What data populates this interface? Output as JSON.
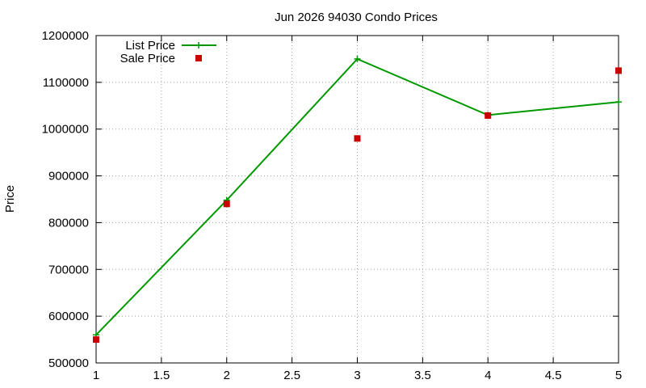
{
  "chart_data": {
    "type": "line",
    "title": "Jun 2026 94030 Condo Prices",
    "xlabel": "",
    "ylabel": "Price",
    "xlim": [
      1,
      5
    ],
    "ylim": [
      500000,
      1200000
    ],
    "xticks": [
      "1",
      "1.5",
      "2",
      "2.5",
      "3",
      "3.5",
      "4",
      "4.5",
      "5"
    ],
    "yticks": [
      "500000",
      "600000",
      "700000",
      "800000",
      "900000",
      "1000000",
      "1100000",
      "1200000"
    ],
    "grid": true,
    "legend_position": "top-left",
    "series": [
      {
        "name": "List Price",
        "style": "line-with-plus-markers",
        "color": "#009900",
        "x": [
          1,
          2,
          3,
          4,
          5
        ],
        "y": [
          560000,
          848000,
          1150000,
          1030000,
          1058000
        ]
      },
      {
        "name": "Sale Price",
        "style": "square-markers",
        "color": "#cc0000",
        "x": [
          1,
          2,
          3,
          4,
          5
        ],
        "y": [
          550000,
          840000,
          980000,
          1029000,
          1125000
        ]
      }
    ]
  }
}
